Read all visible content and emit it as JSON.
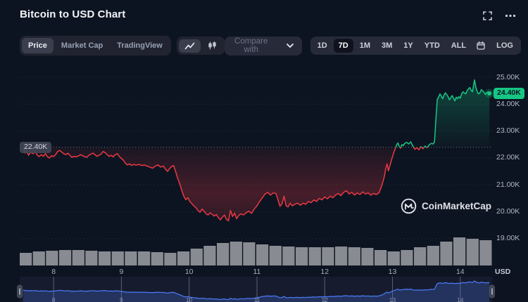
{
  "header": {
    "title": "Bitcoin to USD Chart"
  },
  "toolbar": {
    "chart_tabs": [
      {
        "label": "Price",
        "active": true
      },
      {
        "label": "Market Cap",
        "active": false
      },
      {
        "label": "TradingView",
        "active": false
      }
    ],
    "chart_types": [
      {
        "icon": "line-chart-icon",
        "active": true
      },
      {
        "icon": "candlestick-icon",
        "active": false
      }
    ],
    "compare_label": "Compare with",
    "ranges": [
      {
        "label": "1D",
        "active": false
      },
      {
        "label": "7D",
        "active": true
      },
      {
        "label": "1M",
        "active": false
      },
      {
        "label": "3M",
        "active": false
      },
      {
        "label": "1Y",
        "active": false
      },
      {
        "label": "YTD",
        "active": false
      },
      {
        "label": "ALL",
        "active": false
      }
    ],
    "log_label": "LOG"
  },
  "watermark": {
    "text": "CoinMarketCap"
  },
  "chart_data": {
    "type": "line",
    "title": "Bitcoin to USD Chart",
    "unit": "USD",
    "baseline_value": 22.4,
    "baseline_label": "22.40K",
    "last_value": 24.4,
    "last_label": "24.40K",
    "x_range": [
      7.5,
      14.48
    ],
    "y_ticks": [
      {
        "value": 25,
        "label": "25.00K"
      },
      {
        "value": 24,
        "label": "24.00K"
      },
      {
        "value": 23,
        "label": "23.00K"
      },
      {
        "value": 22,
        "label": "22.00K"
      },
      {
        "value": 21,
        "label": "21.00K"
      },
      {
        "value": 20,
        "label": "20.00K"
      },
      {
        "value": 19,
        "label": "19.00K"
      }
    ],
    "x_ticks": [
      {
        "value": 8,
        "label": "8"
      },
      {
        "value": 9,
        "label": "9"
      },
      {
        "value": 10,
        "label": "10"
      },
      {
        "value": 11,
        "label": "11"
      },
      {
        "value": 12,
        "label": "12"
      },
      {
        "value": 13,
        "label": "13"
      },
      {
        "value": 14,
        "label": "14"
      }
    ],
    "colors": {
      "up": "#16c784",
      "down": "#ea3943",
      "navigator": "#4a76f2",
      "volume": "#94969c"
    },
    "price_series": [
      [
        7.55,
        22.38
      ],
      [
        7.58,
        22.18
      ],
      [
        7.6,
        22.26
      ],
      [
        7.63,
        22.1
      ],
      [
        7.66,
        22.2
      ],
      [
        7.7,
        22.16
      ],
      [
        7.73,
        22.23
      ],
      [
        7.76,
        22.1
      ],
      [
        7.79,
        22.05
      ],
      [
        7.82,
        22.12
      ],
      [
        7.85,
        22.06
      ],
      [
        7.88,
        22.16
      ],
      [
        7.91,
        22.04
      ],
      [
        7.94,
        22.0
      ],
      [
        7.97,
        22.08
      ],
      [
        8.0,
        22.05
      ],
      [
        8.03,
        22.12
      ],
      [
        8.06,
        22.24
      ],
      [
        8.09,
        22.28
      ],
      [
        8.12,
        22.22
      ],
      [
        8.15,
        22.16
      ],
      [
        8.18,
        22.12
      ],
      [
        8.21,
        22.18
      ],
      [
        8.24,
        22.1
      ],
      [
        8.27,
        22.02
      ],
      [
        8.3,
        22.06
      ],
      [
        8.33,
        22.04
      ],
      [
        8.37,
        22.08
      ],
      [
        8.4,
        22.12
      ],
      [
        8.43,
        22.08
      ],
      [
        8.46,
        22.05
      ],
      [
        8.49,
        22.02
      ],
      [
        8.52,
        22.1
      ],
      [
        8.55,
        22.14
      ],
      [
        8.58,
        22.18
      ],
      [
        8.61,
        22.12
      ],
      [
        8.64,
        22.06
      ],
      [
        8.67,
        22.1
      ],
      [
        8.7,
        22.14
      ],
      [
        8.73,
        22.24
      ],
      [
        8.76,
        22.2
      ],
      [
        8.79,
        22.12
      ],
      [
        8.82,
        22.06
      ],
      [
        8.85,
        22.1
      ],
      [
        8.88,
        22.04
      ],
      [
        8.91,
        22.12
      ],
      [
        8.94,
        22.16
      ],
      [
        8.97,
        22.06
      ],
      [
        9.0,
        21.98
      ],
      [
        9.03,
        21.92
      ],
      [
        9.06,
        21.8
      ],
      [
        9.09,
        21.74
      ],
      [
        9.12,
        21.78
      ],
      [
        9.15,
        21.72
      ],
      [
        9.18,
        21.76
      ],
      [
        9.22,
        21.73
      ],
      [
        9.26,
        21.76
      ],
      [
        9.3,
        21.72
      ],
      [
        9.34,
        21.74
      ],
      [
        9.38,
        21.7
      ],
      [
        9.42,
        21.66
      ],
      [
        9.46,
        21.62
      ],
      [
        9.5,
        21.7
      ],
      [
        9.54,
        21.74
      ],
      [
        9.58,
        21.66
      ],
      [
        9.62,
        21.7
      ],
      [
        9.65,
        21.58
      ],
      [
        9.68,
        21.5
      ],
      [
        9.71,
        21.6
      ],
      [
        9.74,
        21.68
      ],
      [
        9.77,
        21.72
      ],
      [
        9.8,
        21.5
      ],
      [
        9.83,
        21.25
      ],
      [
        9.86,
        21.05
      ],
      [
        9.89,
        20.8
      ],
      [
        9.92,
        20.58
      ],
      [
        9.95,
        20.45
      ],
      [
        9.98,
        20.52
      ],
      [
        10.01,
        20.38
      ],
      [
        10.04,
        20.3
      ],
      [
        10.07,
        20.22
      ],
      [
        10.1,
        20.15
      ],
      [
        10.13,
        20.05
      ],
      [
        10.16,
        19.98
      ],
      [
        10.19,
        20.1
      ],
      [
        10.22,
        20.02
      ],
      [
        10.25,
        19.92
      ],
      [
        10.28,
        19.88
      ],
      [
        10.31,
        19.96
      ],
      [
        10.34,
        19.9
      ],
      [
        10.37,
        19.84
      ],
      [
        10.4,
        19.9
      ],
      [
        10.43,
        19.78
      ],
      [
        10.46,
        19.7
      ],
      [
        10.49,
        19.8
      ],
      [
        10.52,
        19.88
      ],
      [
        10.55,
        19.72
      ],
      [
        10.58,
        19.66
      ],
      [
        10.61,
        20.05
      ],
      [
        10.64,
        19.82
      ],
      [
        10.67,
        19.95
      ],
      [
        10.7,
        19.74
      ],
      [
        10.73,
        19.86
      ],
      [
        10.76,
        19.92
      ],
      [
        10.8,
        19.88
      ],
      [
        10.84,
        19.96
      ],
      [
        10.88,
        20.02
      ],
      [
        10.92,
        19.94
      ],
      [
        10.96,
        20.1
      ],
      [
        11.0,
        20.22
      ],
      [
        11.04,
        20.38
      ],
      [
        11.08,
        20.52
      ],
      [
        11.12,
        20.66
      ],
      [
        11.16,
        20.72
      ],
      [
        11.2,
        20.62
      ],
      [
        11.24,
        20.7
      ],
      [
        11.28,
        20.68
      ],
      [
        11.31,
        20.45
      ],
      [
        11.34,
        20.2
      ],
      [
        11.37,
        20.3
      ],
      [
        11.4,
        20.58
      ],
      [
        11.43,
        20.22
      ],
      [
        11.46,
        20.18
      ],
      [
        11.49,
        20.32
      ],
      [
        11.52,
        20.22
      ],
      [
        11.56,
        20.28
      ],
      [
        11.6,
        20.32
      ],
      [
        11.64,
        20.24
      ],
      [
        11.68,
        20.32
      ],
      [
        11.72,
        20.28
      ],
      [
        11.76,
        20.38
      ],
      [
        11.8,
        20.34
      ],
      [
        11.84,
        20.44
      ],
      [
        11.88,
        20.38
      ],
      [
        11.92,
        20.5
      ],
      [
        11.96,
        20.44
      ],
      [
        12.0,
        20.55
      ],
      [
        12.04,
        20.48
      ],
      [
        12.08,
        20.58
      ],
      [
        12.12,
        20.52
      ],
      [
        12.16,
        20.62
      ],
      [
        12.2,
        20.68
      ],
      [
        12.24,
        20.6
      ],
      [
        12.28,
        20.72
      ],
      [
        12.32,
        20.78
      ],
      [
        12.36,
        20.66
      ],
      [
        12.4,
        20.72
      ],
      [
        12.44,
        20.62
      ],
      [
        12.48,
        20.7
      ],
      [
        12.52,
        20.64
      ],
      [
        12.56,
        20.74
      ],
      [
        12.6,
        20.66
      ],
      [
        12.64,
        20.7
      ],
      [
        12.68,
        20.62
      ],
      [
        12.72,
        20.68
      ],
      [
        12.76,
        20.64
      ],
      [
        12.8,
        20.7
      ],
      [
        12.83,
        20.88
      ],
      [
        12.86,
        21.12
      ],
      [
        12.88,
        21.32
      ],
      [
        12.9,
        21.6
      ],
      [
        12.92,
        21.78
      ],
      [
        12.94,
        21.52
      ],
      [
        12.96,
        21.7
      ],
      [
        12.98,
        21.88
      ],
      [
        13.0,
        22.05
      ],
      [
        13.02,
        22.2
      ],
      [
        13.04,
        22.34
      ],
      [
        13.06,
        22.48
      ],
      [
        13.08,
        22.56
      ],
      [
        13.1,
        22.42
      ],
      [
        13.12,
        22.36
      ],
      [
        13.14,
        22.5
      ],
      [
        13.16,
        22.46
      ],
      [
        13.18,
        22.54
      ],
      [
        13.21,
        22.58
      ],
      [
        13.24,
        22.52
      ],
      [
        13.27,
        22.6
      ],
      [
        13.3,
        22.44
      ],
      [
        13.33,
        22.32
      ],
      [
        13.36,
        22.38
      ],
      [
        13.39,
        22.3
      ],
      [
        13.42,
        22.42
      ],
      [
        13.45,
        22.34
      ],
      [
        13.48,
        22.44
      ],
      [
        13.51,
        22.38
      ],
      [
        13.54,
        22.48
      ],
      [
        13.57,
        22.54
      ],
      [
        13.6,
        22.52
      ],
      [
        13.62,
        22.6
      ],
      [
        13.64,
        23.4
      ],
      [
        13.66,
        24.18
      ],
      [
        13.68,
        24.26
      ],
      [
        13.7,
        24.38
      ],
      [
        13.72,
        24.3
      ],
      [
        13.74,
        24.2
      ],
      [
        13.76,
        24.34
      ],
      [
        13.78,
        24.42
      ],
      [
        13.8,
        24.36
      ],
      [
        13.82,
        24.28
      ],
      [
        13.84,
        24.16
      ],
      [
        13.86,
        24.24
      ],
      [
        13.88,
        24.32
      ],
      [
        13.9,
        24.22
      ],
      [
        13.92,
        24.12
      ],
      [
        13.94,
        24.26
      ],
      [
        13.96,
        24.2
      ],
      [
        13.98,
        24.28
      ],
      [
        14.0,
        24.22
      ],
      [
        14.02,
        24.38
      ],
      [
        14.04,
        24.46
      ],
      [
        14.06,
        24.42
      ],
      [
        14.08,
        24.38
      ],
      [
        14.1,
        24.5
      ],
      [
        14.12,
        24.56
      ],
      [
        14.14,
        24.62
      ],
      [
        14.16,
        24.52
      ],
      [
        14.18,
        24.46
      ],
      [
        14.21,
        24.9
      ],
      [
        14.23,
        24.64
      ],
      [
        14.25,
        24.46
      ],
      [
        14.27,
        24.38
      ],
      [
        14.29,
        24.42
      ],
      [
        14.31,
        24.54
      ],
      [
        14.33,
        24.5
      ],
      [
        14.35,
        24.44
      ],
      [
        14.37,
        24.36
      ],
      [
        14.39,
        24.42
      ],
      [
        14.41,
        24.46
      ],
      [
        14.43,
        24.4
      ]
    ],
    "volume_series": [
      18,
      20,
      21,
      22,
      22,
      21,
      20,
      20,
      20,
      20,
      19,
      18,
      20,
      24,
      28,
      32,
      34,
      33,
      30,
      28,
      27,
      26,
      26,
      26,
      27,
      26,
      25,
      22,
      20,
      22,
      26,
      28,
      34,
      40,
      38,
      36
    ]
  }
}
